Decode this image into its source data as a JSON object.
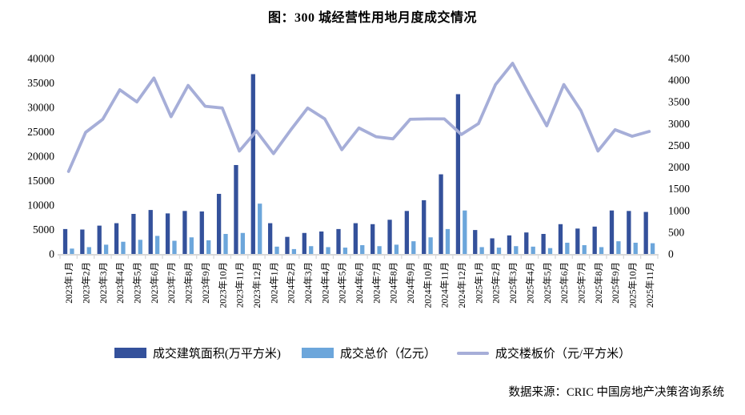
{
  "title": "图：300 城经营性用地月度成交情况",
  "source_note": "数据来源：CRIC 中国房地产决策咨询系统",
  "colors": {
    "area_bar": "#34519B",
    "price_bar": "#6CA6DB",
    "line": "#A6AED8",
    "axis": "#D9D9D9",
    "text": "#000000"
  },
  "chart_data": {
    "type": "bar",
    "subtype": "bar+line combo, dual axis",
    "title": "图：300 城经营性用地月度成交情况",
    "grid": false,
    "legend_position": "bottom",
    "left_axis": {
      "min": 0,
      "max": 40000,
      "step": 5000
    },
    "right_axis": {
      "min": 0,
      "max": 4500,
      "step": 500
    },
    "categories": [
      "2023年1月",
      "2023年2月",
      "2023年3月",
      "2023年4月",
      "2023年5月",
      "2023年6月",
      "2023年7月",
      "2023年8月",
      "2023年9月",
      "2023年10月",
      "2023年11月",
      "2023年12月",
      "2024年1月",
      "2024年2月",
      "2024年3月",
      "2024年4月",
      "2024年5月",
      "2024年6月",
      "2024年7月",
      "2024年8月",
      "2024年9月",
      "2024年10月",
      "2024年11月",
      "2024年12月",
      "2025年1月",
      "2025年2月",
      "2025年3月",
      "2025年4月",
      "2025年5月",
      "2025年6月",
      "2025年7月",
      "2025年8月",
      "2025年9月",
      "2025年10月",
      "2025年11月"
    ],
    "series": [
      {
        "name": "成交建筑面积(万平方米)",
        "type": "bar",
        "axis": "left",
        "color_key": "area_bar",
        "values": [
          5100,
          5000,
          5800,
          6300,
          8200,
          9000,
          8300,
          8800,
          8700,
          12300,
          18200,
          36800,
          6300,
          3500,
          4300,
          4600,
          5100,
          6300,
          6100,
          7000,
          8800,
          11000,
          16300,
          32700,
          4900,
          3200,
          3800,
          4400,
          4100,
          6100,
          5200,
          5600,
          8900,
          8800,
          8600
        ]
      },
      {
        "name": "成交总价（亿元）",
        "type": "bar",
        "axis": "left",
        "color_key": "price_bar",
        "values": [
          1100,
          1400,
          1900,
          2500,
          2900,
          3700,
          2700,
          3400,
          2800,
          4100,
          4300,
          10300,
          1500,
          1000,
          1600,
          1400,
          1300,
          1800,
          1600,
          1900,
          2600,
          3400,
          5100,
          8900,
          1400,
          1300,
          1600,
          1500,
          1200,
          2300,
          1800,
          1400,
          2600,
          2300,
          2200
        ]
      },
      {
        "name": "成交楼板价（元/平方米）",
        "type": "line",
        "axis": "right",
        "color_key": "line",
        "values": [
          1900,
          2800,
          3100,
          3780,
          3500,
          4050,
          3160,
          3880,
          3400,
          3360,
          2370,
          2830,
          2310,
          2850,
          3360,
          3110,
          2400,
          2900,
          2700,
          2650,
          3100,
          3110,
          3110,
          2750,
          3000,
          3900,
          4390,
          3660,
          2950,
          3900,
          3300,
          2370,
          2860,
          2710,
          2820
        ]
      }
    ]
  }
}
